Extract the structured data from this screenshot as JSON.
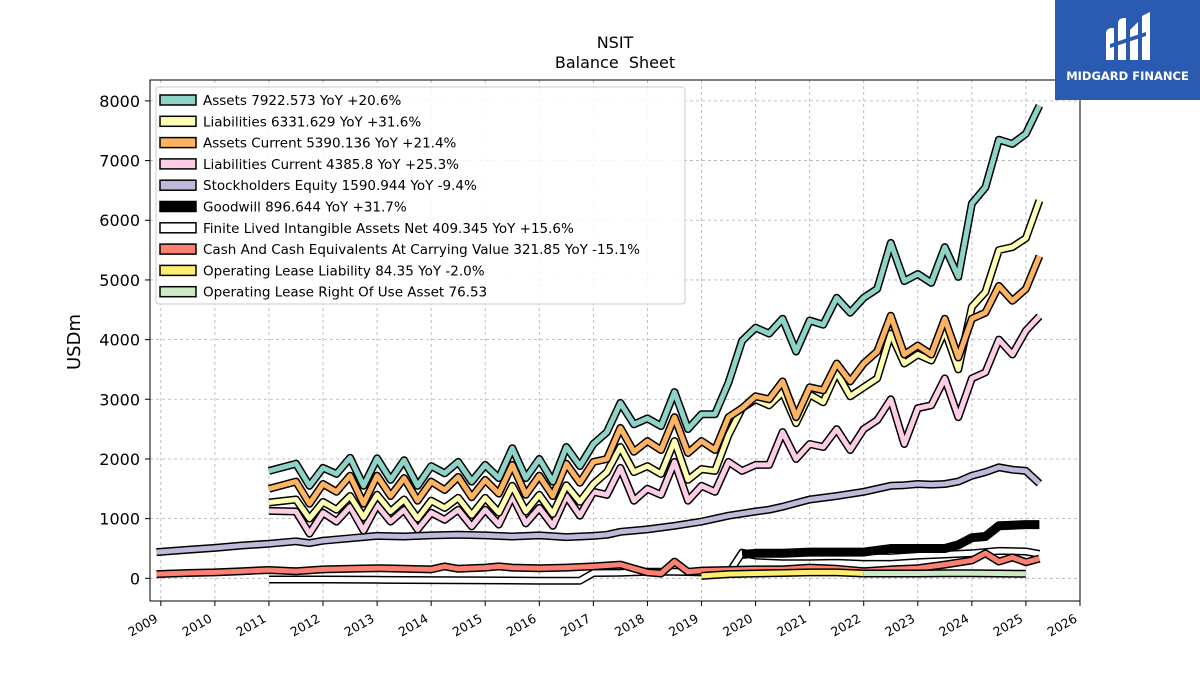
{
  "brand": {
    "name": "MIDGARD FINANCE"
  },
  "chart_data": {
    "type": "line",
    "title": "NSIT",
    "subtitle": "Balance  Sheet",
    "ylabel": "USDm",
    "xlabel": "",
    "xlim": [
      2008.8,
      2026.0
    ],
    "ylim": [
      -380,
      8350
    ],
    "x_ticks": [
      2009,
      2010,
      2011,
      2012,
      2013,
      2014,
      2015,
      2016,
      2017,
      2018,
      2019,
      2020,
      2021,
      2022,
      2023,
      2024,
      2025,
      2026
    ],
    "y_ticks": [
      0,
      1000,
      2000,
      3000,
      4000,
      5000,
      6000,
      7000,
      8000
    ],
    "grid": true,
    "legend_position": "top-left",
    "series": [
      {
        "name": "Assets",
        "legend": "Assets  7922.573 YoY +20.6%",
        "color": "#8dd3c7",
        "x": [
          2011.0,
          2011.5,
          2011.75,
          2012.0,
          2012.25,
          2012.5,
          2012.75,
          2013.0,
          2013.25,
          2013.5,
          2013.75,
          2014.0,
          2014.25,
          2014.5,
          2014.75,
          2015.0,
          2015.25,
          2015.5,
          2015.75,
          2016.0,
          2016.25,
          2016.5,
          2016.75,
          2017.0,
          2017.25,
          2017.5,
          2017.75,
          2018.0,
          2018.25,
          2018.5,
          2018.75,
          2019.0,
          2019.25,
          2019.5,
          2019.75,
          2020.0,
          2020.25,
          2020.5,
          2020.75,
          2021.0,
          2021.25,
          2021.5,
          2021.75,
          2022.0,
          2022.25,
          2022.5,
          2022.75,
          2023.0,
          2023.25,
          2023.5,
          2023.75,
          2024.0,
          2024.25,
          2024.5,
          2024.75,
          2025.0,
          2025.25
        ],
        "y": [
          1800,
          1920,
          1550,
          1850,
          1750,
          2020,
          1550,
          2010,
          1650,
          1980,
          1550,
          1880,
          1760,
          1950,
          1620,
          1900,
          1680,
          2180,
          1680,
          2000,
          1620,
          2200,
          1880,
          2250,
          2450,
          2940,
          2580,
          2680,
          2550,
          3120,
          2500,
          2750,
          2750,
          3280,
          3980,
          4200,
          4100,
          4350,
          3800,
          4320,
          4250,
          4700,
          4450,
          4700,
          4850,
          5620,
          4980,
          5100,
          4950,
          5550,
          5050,
          6280,
          6550,
          7350,
          7280,
          7450,
          7920
        ]
      },
      {
        "name": "Liabilities",
        "legend": "Liabilities  6331.629 YoY +31.6%",
        "color": "#ffffb3",
        "x": [
          2011.0,
          2011.5,
          2011.75,
          2012.0,
          2012.25,
          2012.5,
          2012.75,
          2013.0,
          2013.25,
          2013.5,
          2013.75,
          2014.0,
          2014.25,
          2014.5,
          2014.75,
          2015.0,
          2015.25,
          2015.5,
          2015.75,
          2016.0,
          2016.25,
          2016.5,
          2016.75,
          2017.0,
          2017.25,
          2017.5,
          2017.75,
          2018.0,
          2018.25,
          2018.5,
          2018.75,
          2019.0,
          2019.25,
          2019.5,
          2019.75,
          2020.0,
          2020.25,
          2020.5,
          2020.75,
          2021.0,
          2021.25,
          2021.5,
          2021.75,
          2022.0,
          2022.25,
          2022.5,
          2022.75,
          2023.0,
          2023.25,
          2023.5,
          2023.75,
          2024.0,
          2024.25,
          2024.5,
          2024.75,
          2025.0,
          2025.25
        ],
        "y": [
          1270,
          1320,
          1000,
          1280,
          1150,
          1380,
          1020,
          1400,
          1120,
          1320,
          1000,
          1300,
          1180,
          1350,
          1060,
          1350,
          1100,
          1550,
          1120,
          1400,
          1080,
          1560,
          1280,
          1580,
          1780,
          2200,
          1780,
          1880,
          1750,
          2300,
          1650,
          1830,
          1800,
          2400,
          2850,
          3000,
          2900,
          3120,
          2600,
          3080,
          2950,
          3450,
          3050,
          3200,
          3350,
          4100,
          3600,
          3750,
          3650,
          4150,
          3500,
          4550,
          4800,
          5500,
          5550,
          5700,
          6330
        ]
      },
      {
        "name": "Assets Current",
        "legend": "Assets Current  5390.136 YoY +21.4%",
        "color": "#fdb462",
        "x": [
          2011.0,
          2011.5,
          2011.75,
          2012.0,
          2012.25,
          2012.5,
          2012.75,
          2013.0,
          2013.25,
          2013.5,
          2013.75,
          2014.0,
          2014.25,
          2014.5,
          2014.75,
          2015.0,
          2015.25,
          2015.5,
          2015.75,
          2016.0,
          2016.25,
          2016.5,
          2016.75,
          2017.0,
          2017.25,
          2017.5,
          2017.75,
          2018.0,
          2018.25,
          2018.5,
          2018.75,
          2019.0,
          2019.25,
          2019.5,
          2019.75,
          2020.0,
          2020.25,
          2020.5,
          2020.75,
          2021.0,
          2021.25,
          2021.5,
          2021.75,
          2022.0,
          2022.25,
          2022.5,
          2022.75,
          2023.0,
          2023.25,
          2023.5,
          2023.75,
          2024.0,
          2024.25,
          2024.5,
          2024.75,
          2025.0,
          2025.25
        ],
        "y": [
          1500,
          1620,
          1250,
          1580,
          1450,
          1720,
          1250,
          1720,
          1380,
          1680,
          1300,
          1620,
          1480,
          1700,
          1360,
          1650,
          1420,
          1900,
          1400,
          1720,
          1380,
          1920,
          1600,
          1950,
          2000,
          2520,
          2120,
          2300,
          2150,
          2700,
          2100,
          2300,
          2150,
          2700,
          2850,
          3050,
          3000,
          3300,
          2700,
          3200,
          3150,
          3600,
          3300,
          3600,
          3800,
          4400,
          3750,
          3900,
          3750,
          4350,
          3700,
          4350,
          4450,
          4900,
          4650,
          4850,
          5400
        ]
      },
      {
        "name": "Liabilities Current",
        "legend": "Liabilities Current  4385.8 YoY +25.3%",
        "color": "#fccde5",
        "x": [
          2011.0,
          2011.5,
          2011.75,
          2012.0,
          2012.25,
          2012.5,
          2012.75,
          2013.0,
          2013.25,
          2013.5,
          2013.75,
          2014.0,
          2014.25,
          2014.5,
          2014.75,
          2015.0,
          2015.25,
          2015.5,
          2015.75,
          2016.0,
          2016.25,
          2016.5,
          2016.75,
          2017.0,
          2017.25,
          2017.5,
          2017.75,
          2018.0,
          2018.25,
          2018.5,
          2018.75,
          2019.0,
          2019.25,
          2019.5,
          2019.75,
          2020.0,
          2020.25,
          2020.5,
          2020.75,
          2021.0,
          2021.25,
          2021.5,
          2021.75,
          2022.0,
          2022.25,
          2022.5,
          2022.75,
          2023.0,
          2023.25,
          2023.5,
          2023.75,
          2024.0,
          2024.25,
          2024.5,
          2024.75,
          2025.0,
          2025.25
        ],
        "y": [
          1130,
          1120,
          750,
          1100,
          950,
          1200,
          800,
          1230,
          950,
          1150,
          820,
          1100,
          980,
          1150,
          870,
          1150,
          900,
          1380,
          920,
          1180,
          880,
          1380,
          1050,
          1450,
          1400,
          1850,
          1300,
          1500,
          1400,
          1950,
          1300,
          1550,
          1450,
          1950,
          1800,
          1900,
          1900,
          2450,
          2000,
          2250,
          2200,
          2500,
          2150,
          2500,
          2650,
          3000,
          2250,
          2850,
          2900,
          3350,
          2700,
          3350,
          3450,
          4000,
          3750,
          4150,
          4390
        ]
      },
      {
        "name": "Stockholders Equity",
        "legend": "Stockholders Equity  1590.944 YoY -9.4%",
        "color": "#bebada",
        "x": [
          2008.92,
          2009.5,
          2010.0,
          2010.5,
          2011.0,
          2011.5,
          2011.75,
          2012.0,
          2012.5,
          2013.0,
          2013.5,
          2014.0,
          2014.5,
          2015.0,
          2015.5,
          2016.0,
          2016.5,
          2017.0,
          2017.25,
          2017.5,
          2017.75,
          2018.0,
          2018.5,
          2019.0,
          2019.5,
          2020.0,
          2020.25,
          2020.5,
          2020.75,
          2021.0,
          2021.5,
          2022.0,
          2022.25,
          2022.5,
          2022.75,
          2023.0,
          2023.25,
          2023.5,
          2023.75,
          2024.0,
          2024.25,
          2024.5,
          2024.75,
          2025.0,
          2025.25
        ],
        "y": [
          440,
          480,
          510,
          550,
          580,
          620,
          590,
          630,
          670,
          710,
          700,
          720,
          730,
          720,
          700,
          720,
          690,
          710,
          730,
          780,
          800,
          820,
          880,
          950,
          1050,
          1120,
          1150,
          1200,
          1260,
          1320,
          1380,
          1450,
          1500,
          1550,
          1560,
          1580,
          1570,
          1580,
          1620,
          1720,
          1780,
          1860,
          1820,
          1800,
          1590
        ]
      },
      {
        "name": "Goodwill",
        "legend": "Goodwill  896.644 YoY +31.7%",
        "color": "#000000",
        "x": [
          2019.75,
          2020.0,
          2020.5,
          2021.0,
          2021.5,
          2022.0,
          2022.5,
          2023.0,
          2023.5,
          2023.75,
          2024.0,
          2024.25,
          2024.5,
          2024.75,
          2025.0,
          2025.25
        ],
        "y": [
          400,
          420,
          420,
          440,
          440,
          440,
          500,
          500,
          500,
          560,
          680,
          700,
          880,
          890,
          900,
          900
        ]
      },
      {
        "name": "Finite Lived Intangible Assets Net",
        "legend": "Finite Lived Intangible Assets Net  409.345 YoY +15.6%",
        "color": "#ffffff",
        "x": [
          2011.0,
          2012.0,
          2013.0,
          2014.0,
          2015.0,
          2016.0,
          2016.75,
          2017.0,
          2017.5,
          2018.0,
          2018.5,
          2019.0,
          2019.5,
          2019.75,
          2020.0,
          2020.5,
          2021.0,
          2021.5,
          2022.0,
          2022.5,
          2023.0,
          2023.5,
          2024.0,
          2024.5,
          2025.0,
          2025.25
        ],
        "y": [
          -20,
          -20,
          -25,
          -30,
          -35,
          -40,
          -40,
          90,
          95,
          110,
          110,
          100,
          80,
          430,
          380,
          360,
          360,
          370,
          350,
          350,
          380,
          400,
          420,
          460,
          450,
          410
        ]
      },
      {
        "name": "Cash And Cash Equivalents At Carrying Value",
        "legend": "Cash And Cash Equivalents At Carrying Value  321.85 YoY -15.1%",
        "color": "#fb8072",
        "x": [
          2008.92,
          2009.5,
          2010.0,
          2010.5,
          2011.0,
          2011.5,
          2012.0,
          2012.5,
          2013.0,
          2013.5,
          2014.0,
          2014.25,
          2014.5,
          2015.0,
          2015.25,
          2015.5,
          2016.0,
          2016.5,
          2017.0,
          2017.5,
          2018.0,
          2018.25,
          2018.5,
          2018.75,
          2019.0,
          2019.5,
          2020.0,
          2020.5,
          2021.0,
          2021.5,
          2022.0,
          2022.5,
          2023.0,
          2023.5,
          2024.0,
          2024.25,
          2024.5,
          2024.75,
          2025.0,
          2025.25
        ],
        "y": [
          70,
          90,
          100,
          120,
          140,
          120,
          150,
          160,
          170,
          160,
          150,
          200,
          160,
          180,
          200,
          180,
          170,
          180,
          200,
          230,
          100,
          80,
          280,
          110,
          130,
          140,
          150,
          150,
          180,
          160,
          120,
          150,
          170,
          230,
          300,
          420,
          280,
          350,
          270,
          330
        ]
      },
      {
        "name": "Operating Lease Liability",
        "legend": "Operating Lease Liability  84.35 YoY -2.0%",
        "color": "#ffed6f",
        "x": [
          2019.0,
          2019.5,
          2020.0,
          2020.5,
          2021.0,
          2021.5,
          2022.0
        ],
        "y": [
          40,
          70,
          80,
          90,
          100,
          100,
          80
        ]
      },
      {
        "name": "Operating Lease Right Of Use Asset",
        "legend": "Operating Lease Right Of Use Asset  76.53",
        "color": "#ccebc5",
        "x": [
          2022.0,
          2022.5,
          2023.0,
          2023.5,
          2024.0,
          2024.5,
          2025.0
        ],
        "y": [
          80,
          80,
          80,
          85,
          85,
          80,
          75
        ]
      }
    ]
  }
}
